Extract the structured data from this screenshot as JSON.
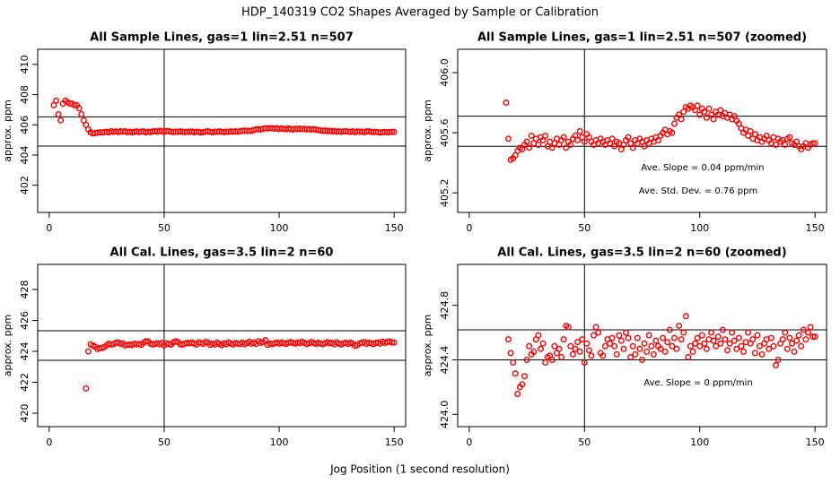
{
  "title": "HDP_140319  CO2 Shapes Averaged by Sample or Calibration",
  "xlabel": "Jog Position (1 second resolution)",
  "chart_data": [
    {
      "type": "scatter",
      "title": "All Sample Lines, gas=1 lin=2.51 n=507",
      "ylabel": "approx. ppm",
      "color": "#ff0000",
      "xlim": [
        -5,
        155
      ],
      "xticks": [
        0,
        50,
        100,
        150
      ],
      "ylim": [
        400.2,
        411
      ],
      "yticks": [
        402,
        404,
        406,
        408,
        410
      ],
      "hlines": [
        406.53,
        404.59
      ],
      "vlines": [
        50
      ],
      "line_color": "#000000",
      "x": [
        2,
        3,
        4,
        5,
        6,
        7,
        8,
        9,
        10,
        11,
        12,
        13,
        14,
        15,
        16,
        17,
        18,
        19,
        20,
        21,
        22,
        23,
        24,
        25,
        26,
        27,
        28,
        29,
        30,
        31,
        32,
        33,
        34,
        35,
        36,
        37,
        38,
        39,
        40,
        41,
        42,
        43,
        44,
        45,
        46,
        47,
        48,
        49,
        50,
        51,
        52,
        53,
        54,
        55,
        56,
        57,
        58,
        59,
        60,
        61,
        62,
        63,
        64,
        65,
        66,
        67,
        68,
        69,
        70,
        71,
        72,
        73,
        74,
        75,
        76,
        77,
        78,
        79,
        80,
        81,
        82,
        83,
        84,
        85,
        86,
        87,
        88,
        89,
        90,
        91,
        92,
        93,
        94,
        95,
        96,
        97,
        98,
        99,
        100,
        101,
        102,
        103,
        104,
        105,
        106,
        107,
        108,
        109,
        110,
        111,
        112,
        113,
        114,
        115,
        116,
        117,
        118,
        119,
        120,
        121,
        122,
        123,
        124,
        125,
        126,
        127,
        128,
        129,
        130,
        131,
        132,
        133,
        134,
        135,
        136,
        137,
        138,
        139,
        140,
        141,
        142,
        143,
        144,
        145,
        146,
        147,
        148,
        149,
        150
      ],
      "values": [
        407.3,
        407.6,
        406.7,
        406.3,
        407.4,
        407.6,
        407.5,
        407.4,
        407.4,
        407.3,
        407.3,
        407.1,
        406.7,
        406.3,
        406.0,
        405.7,
        405.5,
        405.43,
        405.45,
        405.48,
        405.5,
        405.49,
        405.52,
        405.54,
        405.5,
        405.58,
        405.53,
        405.56,
        405.52,
        405.57,
        405.55,
        405.58,
        405.51,
        405.54,
        405.5,
        405.53,
        405.56,
        405.52,
        405.55,
        405.57,
        405.5,
        405.54,
        405.52,
        405.56,
        405.58,
        405.55,
        405.61,
        405.57,
        405.54,
        405.59,
        405.57,
        405.54,
        405.52,
        405.55,
        405.53,
        405.56,
        405.54,
        405.52,
        405.55,
        405.53,
        405.56,
        405.51,
        405.54,
        405.53,
        405.49,
        405.52,
        405.55,
        405.57,
        405.53,
        405.5,
        405.55,
        405.53,
        405.56,
        405.54,
        405.51,
        405.55,
        405.53,
        405.56,
        405.54,
        405.57,
        405.55,
        405.58,
        405.6,
        405.62,
        405.59,
        405.61,
        405.6,
        405.66,
        405.7,
        405.72,
        405.69,
        405.74,
        405.77,
        405.76,
        405.78,
        405.77,
        405.75,
        405.78,
        405.72,
        405.76,
        405.74,
        405.7,
        405.76,
        405.72,
        405.69,
        405.74,
        405.72,
        405.75,
        405.71,
        405.73,
        405.7,
        405.72,
        405.69,
        405.71,
        405.68,
        405.66,
        405.63,
        405.6,
        405.62,
        405.58,
        405.61,
        405.56,
        405.59,
        405.55,
        405.57,
        405.54,
        405.56,
        405.58,
        405.55,
        405.53,
        405.57,
        405.52,
        405.56,
        405.54,
        405.55,
        405.52,
        405.56,
        405.57,
        405.53,
        405.52,
        405.54,
        405.51,
        405.49,
        405.51,
        405.53,
        405.5,
        405.52,
        405.53,
        405.53
      ]
    },
    {
      "type": "scatter",
      "title": "All Sample Lines, gas=1 lin=2.51 n=507 (zoomed)",
      "ylabel": "approx. ppm",
      "color": "#ff0000",
      "xlim": [
        -5,
        155
      ],
      "xticks": [
        0,
        50,
        100,
        150
      ],
      "ylim": [
        405.07,
        406.155
      ],
      "yticks": [
        405.2,
        405.6,
        {
          "value": 406,
          "label": "406.0"
        }
      ],
      "hlines": [
        405.71,
        405.51
      ],
      "vlines": [
        50
      ],
      "line_color": "#000000",
      "annotations": [
        "Ave. Slope =  0.04  ppm/min",
        "Ave. Std. Dev. =  0.76  ppm"
      ],
      "x": [
        16,
        17,
        18,
        19,
        20,
        21,
        22,
        23,
        24,
        25,
        26,
        27,
        28,
        29,
        30,
        31,
        32,
        33,
        34,
        35,
        36,
        37,
        38,
        39,
        40,
        41,
        42,
        43,
        44,
        45,
        46,
        47,
        48,
        49,
        50,
        51,
        52,
        53,
        54,
        55,
        56,
        57,
        58,
        59,
        60,
        61,
        62,
        63,
        64,
        65,
        66,
        67,
        68,
        69,
        70,
        71,
        72,
        73,
        74,
        75,
        76,
        77,
        78,
        79,
        80,
        81,
        82,
        83,
        84,
        85,
        86,
        87,
        88,
        89,
        90,
        91,
        92,
        93,
        94,
        95,
        96,
        97,
        98,
        99,
        100,
        101,
        102,
        103,
        104,
        105,
        106,
        107,
        108,
        109,
        110,
        111,
        112,
        113,
        114,
        115,
        116,
        117,
        118,
        119,
        120,
        121,
        122,
        123,
        124,
        125,
        126,
        127,
        128,
        129,
        130,
        131,
        132,
        133,
        134,
        135,
        136,
        137,
        138,
        139,
        140,
        141,
        142,
        143,
        144,
        145,
        146,
        147,
        148,
        149,
        150
      ],
      "values": [
        405.8,
        405.56,
        405.42,
        405.43,
        405.45,
        405.48,
        405.5,
        405.49,
        405.52,
        405.54,
        405.5,
        405.58,
        405.53,
        405.56,
        405.52,
        405.57,
        405.55,
        405.58,
        405.51,
        405.54,
        405.5,
        405.53,
        405.56,
        405.52,
        405.55,
        405.57,
        405.5,
        405.54,
        405.52,
        405.56,
        405.58,
        405.55,
        405.61,
        405.57,
        405.54,
        405.59,
        405.57,
        405.54,
        405.52,
        405.55,
        405.53,
        405.56,
        405.54,
        405.52,
        405.55,
        405.53,
        405.56,
        405.51,
        405.54,
        405.53,
        405.49,
        405.52,
        405.55,
        405.57,
        405.53,
        405.5,
        405.55,
        405.53,
        405.56,
        405.54,
        405.51,
        405.55,
        405.53,
        405.56,
        405.54,
        405.57,
        405.55,
        405.58,
        405.6,
        405.62,
        405.59,
        405.61,
        405.6,
        405.66,
        405.7,
        405.72,
        405.69,
        405.74,
        405.77,
        405.76,
        405.78,
        405.77,
        405.75,
        405.78,
        405.72,
        405.76,
        405.74,
        405.7,
        405.76,
        405.72,
        405.69,
        405.74,
        405.72,
        405.75,
        405.71,
        405.73,
        405.7,
        405.72,
        405.69,
        405.71,
        405.68,
        405.66,
        405.63,
        405.6,
        405.62,
        405.58,
        405.61,
        405.56,
        405.59,
        405.55,
        405.57,
        405.54,
        405.56,
        405.58,
        405.55,
        405.53,
        405.57,
        405.52,
        405.56,
        405.54,
        405.55,
        405.52,
        405.56,
        405.57,
        405.53,
        405.52,
        405.54,
        405.51,
        405.49,
        405.51,
        405.53,
        405.5,
        405.52,
        405.53,
        405.53
      ]
    },
    {
      "type": "scatter",
      "title": "All Cal. Lines, gas=3.5 lin=2 n=60",
      "ylabel": "approx. ppm",
      "color": "#ff0000",
      "xlim": [
        -5,
        155
      ],
      "xticks": [
        0,
        50,
        100,
        150
      ],
      "ylim": [
        419.13,
        429.62
      ],
      "yticks": [
        420,
        422,
        424,
        426,
        428
      ],
      "hlines": [
        425.33,
        423.42
      ],
      "vlines": [
        50
      ],
      "line_color": "#000000",
      "x": [
        16,
        17,
        18,
        19,
        20,
        21,
        22,
        23,
        24,
        25,
        26,
        27,
        28,
        29,
        30,
        31,
        32,
        33,
        34,
        35,
        36,
        37,
        38,
        39,
        40,
        41,
        42,
        43,
        44,
        45,
        46,
        47,
        48,
        49,
        50,
        51,
        52,
        53,
        54,
        55,
        56,
        57,
        58,
        59,
        60,
        61,
        62,
        63,
        64,
        65,
        66,
        67,
        68,
        69,
        70,
        71,
        72,
        73,
        74,
        75,
        76,
        77,
        78,
        79,
        80,
        81,
        82,
        83,
        84,
        85,
        86,
        87,
        88,
        89,
        90,
        91,
        92,
        93,
        94,
        95,
        96,
        97,
        98,
        99,
        100,
        101,
        102,
        103,
        104,
        105,
        106,
        107,
        108,
        109,
        110,
        111,
        112,
        113,
        114,
        115,
        116,
        117,
        118,
        119,
        120,
        121,
        122,
        123,
        124,
        125,
        126,
        127,
        128,
        129,
        130,
        131,
        132,
        133,
        134,
        135,
        136,
        137,
        138,
        139,
        140,
        141,
        142,
        143,
        144,
        145,
        146,
        147,
        148,
        149,
        150
      ],
      "values": [
        421.6,
        424.0,
        424.45,
        424.38,
        424.3,
        424.15,
        424.2,
        424.22,
        424.28,
        424.4,
        424.5,
        424.44,
        424.46,
        424.55,
        424.58,
        424.48,
        424.52,
        424.38,
        424.42,
        424.43,
        424.4,
        424.5,
        424.45,
        424.48,
        424.42,
        424.55,
        424.65,
        424.64,
        424.5,
        424.44,
        424.48,
        424.53,
        424.46,
        424.55,
        424.38,
        424.52,
        424.47,
        424.43,
        424.58,
        424.64,
        424.6,
        424.45,
        424.43,
        424.5,
        424.55,
        424.52,
        424.56,
        424.5,
        424.44,
        424.58,
        424.54,
        424.48,
        424.6,
        424.56,
        424.42,
        424.5,
        424.44,
        424.56,
        424.48,
        424.4,
        424.52,
        424.46,
        424.58,
        424.5,
        424.44,
        424.54,
        424.5,
        424.48,
        424.56,
        424.46,
        424.53,
        424.62,
        424.5,
        424.56,
        424.48,
        424.65,
        424.55,
        424.6,
        424.72,
        424.42,
        424.5,
        424.46,
        424.52,
        424.56,
        424.5,
        424.58,
        424.52,
        424.48,
        424.55,
        424.6,
        424.54,
        424.5,
        424.57,
        424.52,
        424.62,
        424.55,
        424.47,
        424.52,
        424.6,
        424.54,
        424.48,
        424.56,
        424.5,
        424.46,
        424.53,
        424.6,
        424.52,
        424.55,
        424.45,
        424.58,
        424.5,
        424.44,
        424.52,
        424.55,
        424.48,
        424.56,
        424.5,
        424.36,
        424.4,
        424.52,
        424.55,
        424.6,
        424.48,
        424.56,
        424.52,
        424.46,
        424.54,
        424.58,
        424.5,
        424.62,
        424.55,
        424.6,
        424.64,
        424.57,
        424.57
      ]
    },
    {
      "type": "scatter",
      "title": "All Cal. Lines, gas=3.5 lin=2 n=60 (zoomed)",
      "ylabel": "approx. ppm",
      "color": "#ff0000",
      "xlim": [
        -5,
        155
      ],
      "xticks": [
        0,
        50,
        100,
        150
      ],
      "ylim": [
        423.91,
        425.1
      ],
      "yticks": [
        {
          "value": 424,
          "label": "424.0"
        },
        424.4,
        424.8
      ],
      "hlines": [
        424.62,
        424.4
      ],
      "vlines": [
        50
      ],
      "line_color": "#000000",
      "annotations": [
        "Ave. Slope =  0  ppm/min"
      ],
      "x": [
        17,
        18,
        19,
        20,
        21,
        22,
        23,
        24,
        25,
        26,
        27,
        28,
        29,
        30,
        31,
        32,
        33,
        34,
        35,
        36,
        37,
        38,
        39,
        40,
        41,
        42,
        43,
        44,
        45,
        46,
        47,
        48,
        49,
        50,
        51,
        52,
        53,
        54,
        55,
        56,
        57,
        58,
        59,
        60,
        61,
        62,
        63,
        64,
        65,
        66,
        67,
        68,
        69,
        70,
        71,
        72,
        73,
        74,
        75,
        76,
        77,
        78,
        79,
        80,
        81,
        82,
        83,
        84,
        85,
        86,
        87,
        88,
        89,
        90,
        91,
        92,
        93,
        94,
        95,
        96,
        97,
        98,
        99,
        100,
        101,
        102,
        103,
        104,
        105,
        106,
        107,
        108,
        109,
        110,
        111,
        112,
        113,
        114,
        115,
        116,
        117,
        118,
        119,
        120,
        121,
        122,
        123,
        124,
        125,
        126,
        127,
        128,
        129,
        130,
        131,
        132,
        133,
        134,
        135,
        136,
        137,
        138,
        139,
        140,
        141,
        142,
        143,
        144,
        145,
        146,
        147,
        148,
        149,
        150
      ],
      "values": [
        424.55,
        424.45,
        424.38,
        424.3,
        424.15,
        424.2,
        424.22,
        424.28,
        424.4,
        424.5,
        424.44,
        424.46,
        424.55,
        424.58,
        424.48,
        424.52,
        424.38,
        424.42,
        424.43,
        424.4,
        424.5,
        424.45,
        424.48,
        424.42,
        424.55,
        424.65,
        424.64,
        424.5,
        424.44,
        424.48,
        424.53,
        424.46,
        424.55,
        424.38,
        424.52,
        424.47,
        424.43,
        424.58,
        424.64,
        424.6,
        424.45,
        424.43,
        424.5,
        424.55,
        424.52,
        424.56,
        424.5,
        424.44,
        424.58,
        424.54,
        424.48,
        424.6,
        424.56,
        424.42,
        424.5,
        424.44,
        424.56,
        424.48,
        424.4,
        424.52,
        424.46,
        424.58,
        424.5,
        424.44,
        424.54,
        424.5,
        424.48,
        424.56,
        424.46,
        424.53,
        424.62,
        424.5,
        424.56,
        424.48,
        424.65,
        424.55,
        424.6,
        424.72,
        424.42,
        424.5,
        424.46,
        424.52,
        424.56,
        424.5,
        424.58,
        424.52,
        424.48,
        424.55,
        424.6,
        424.54,
        424.5,
        424.57,
        424.52,
        424.62,
        424.55,
        424.47,
        424.52,
        424.6,
        424.54,
        424.48,
        424.56,
        424.5,
        424.46,
        424.53,
        424.6,
        424.52,
        424.55,
        424.45,
        424.58,
        424.5,
        424.44,
        424.52,
        424.55,
        424.48,
        424.56,
        424.5,
        424.36,
        424.4,
        424.52,
        424.55,
        424.6,
        424.48,
        424.56,
        424.52,
        424.46,
        424.54,
        424.58,
        424.5,
        424.62,
        424.55,
        424.6,
        424.64,
        424.57,
        424.57
      ]
    }
  ]
}
